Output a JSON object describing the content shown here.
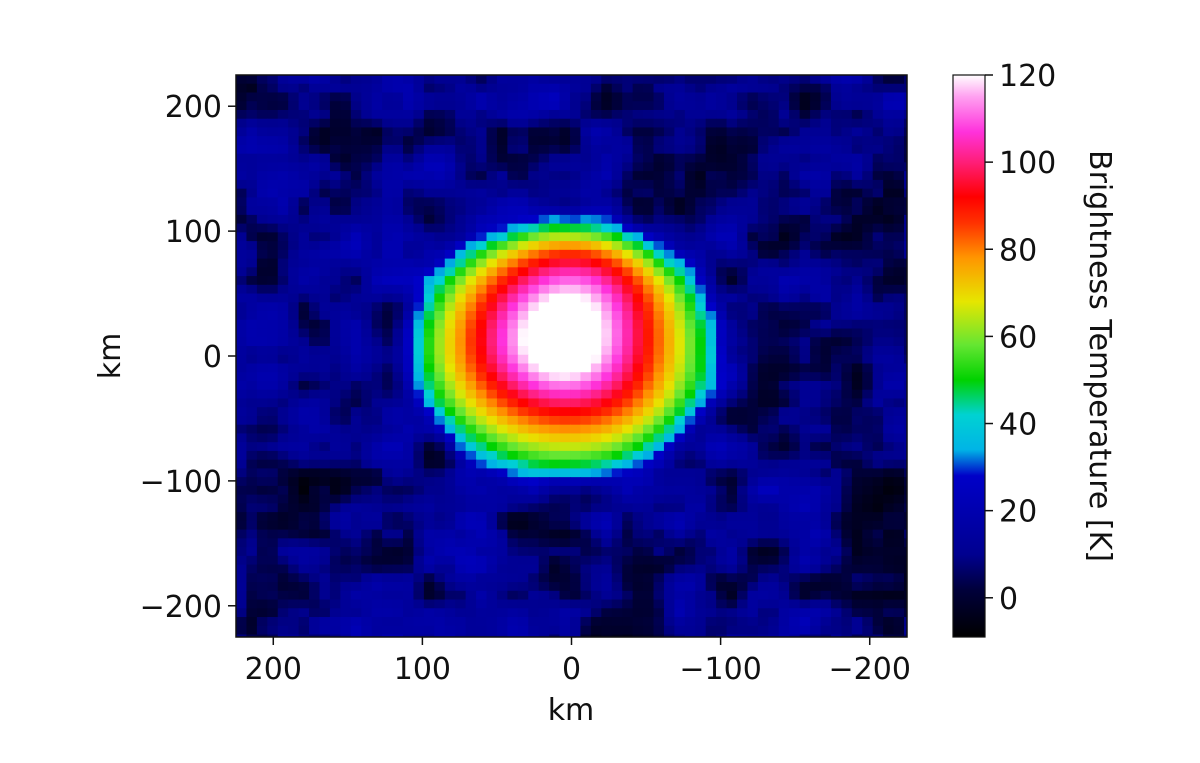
{
  "chart_data": {
    "type": "heatmap",
    "title": "",
    "xlabel": "km",
    "ylabel": "km",
    "xlim": [
      225,
      -225
    ],
    "ylim": [
      -225,
      225
    ],
    "x_ticks": [
      200,
      100,
      0,
      -100,
      -200
    ],
    "x_tick_labels": [
      "200",
      "100",
      "0",
      "−100",
      "−200"
    ],
    "y_ticks": [
      200,
      100,
      0,
      -100,
      -200
    ],
    "y_tick_labels": [
      "200",
      "100",
      "0",
      "−100",
      "−200"
    ],
    "grid": false,
    "colormap": "gist_ncar-like: black, dark blue, cyan, green, yellow, orange, red, magenta, white",
    "colorbar": {
      "label": "Brightness Temperature [K]",
      "range": [
        -9,
        120
      ],
      "ticks": [
        0,
        20,
        40,
        60,
        80,
        100,
        120
      ],
      "tick_labels": [
        "0",
        "20",
        "40",
        "60",
        "80",
        "100",
        "120"
      ],
      "stops": [
        {
          "value": -9,
          "color": "#000000"
        },
        {
          "value": 2,
          "color": "#00003c"
        },
        {
          "value": 10,
          "color": "#000090"
        },
        {
          "value": 28,
          "color": "#0000c8"
        },
        {
          "value": 34,
          "color": "#00b4e6"
        },
        {
          "value": 42,
          "color": "#00d2d2"
        },
        {
          "value": 50,
          "color": "#00d200"
        },
        {
          "value": 58,
          "color": "#64e632"
        },
        {
          "value": 68,
          "color": "#e6e600"
        },
        {
          "value": 78,
          "color": "#ff9600"
        },
        {
          "value": 86,
          "color": "#ff3200"
        },
        {
          "value": 92,
          "color": "#ff0000"
        },
        {
          "value": 100,
          "color": "#ff1e78"
        },
        {
          "value": 107,
          "color": "#ff32dc"
        },
        {
          "value": 115,
          "color": "#ffa0f0"
        },
        {
          "value": 120,
          "color": "#ffffff"
        }
      ]
    },
    "field": {
      "description_units": "K",
      "peak_center_km": [
        5,
        25
      ],
      "peak_value": 120,
      "background_value": 8,
      "disk_radius_km": 105,
      "blobs": [
        {
          "x": 5,
          "y": 25,
          "sx": 55,
          "sy": 60,
          "amp": 55
        },
        {
          "x": -10,
          "y": 60,
          "sx": 35,
          "sy": 30,
          "amp": 25
        },
        {
          "x": 35,
          "y": 5,
          "sx": 40,
          "sy": 45,
          "amp": 15
        },
        {
          "x": -35,
          "y": -35,
          "sx": 30,
          "sy": 35,
          "amp": 10
        }
      ]
    }
  }
}
